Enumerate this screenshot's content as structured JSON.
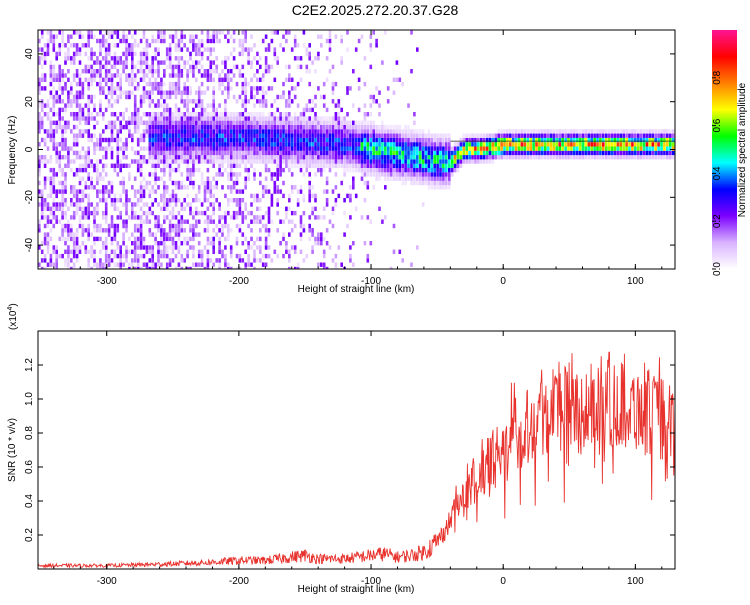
{
  "title": "C2E2.2025.272.20.37.G28",
  "chart_data": [
    {
      "type": "heatmap",
      "name": "spectrogram",
      "xlabel": "Height of straight line (km)",
      "ylabel": "Frequency (Hz)",
      "xlim": [
        -352,
        130
      ],
      "ylim": [
        -50,
        50
      ],
      "xticks": [
        -300,
        -200,
        -100,
        0,
        100
      ],
      "xtick_labels": [
        "-300",
        "-200",
        "-100",
        "0",
        "100"
      ],
      "yticks": [
        -40,
        -20,
        0,
        20,
        40
      ],
      "ytick_labels": [
        "-40",
        "-20",
        "0",
        "20",
        "40"
      ],
      "ridge": {
        "x": [
          -260,
          -230,
          -200,
          -170,
          -140,
          -120,
          -100,
          -80,
          -60,
          -50,
          -40,
          -30,
          -20,
          -10,
          0,
          20,
          60,
          100,
          130
        ],
        "frequency_hz": [
          5,
          5,
          5,
          4,
          3,
          2,
          0,
          -2,
          -4,
          -5,
          -5,
          0,
          0,
          1,
          2,
          2,
          2,
          2,
          2
        ]
      },
      "colorbar": {
        "label": "Normalized spectral amplitude",
        "range": [
          0,
          1
        ],
        "ticks": [
          0.0,
          0.2,
          0.4,
          0.6,
          0.8
        ],
        "tick_labels": [
          "0.0",
          "0.2",
          "0.4",
          "0.6",
          "0.8"
        ],
        "colors": [
          "#ffffff",
          "#d9b3ff",
          "#7b00ff",
          "#0000ff",
          "#00ffff",
          "#00ff00",
          "#ffff00",
          "#ff7f00",
          "#ff0000",
          "#ff1493"
        ]
      }
    },
    {
      "type": "line",
      "name": "snr",
      "xlabel": "Height of straight line (km)",
      "ylabel": "SNR (10 * v/v)",
      "scale_label": "(x10",
      "scale_exponent": "4",
      "scale_suffix": ")",
      "xlim": [
        -352,
        130
      ],
      "ylim": [
        0,
        1.4
      ],
      "xticks": [
        -300,
        -200,
        -100,
        0,
        100
      ],
      "xtick_labels": [
        "-300",
        "-200",
        "-100",
        "0",
        "100"
      ],
      "yticks": [
        0.2,
        0.4,
        0.6,
        0.8,
        1.0,
        1.2
      ],
      "ytick_labels": [
        "0.2",
        "0.4",
        "0.6",
        "0.8",
        "1.0",
        "1.2"
      ],
      "color": "#e8322d",
      "series": [
        {
          "name": "SNR",
          "x": [
            -352,
            -300,
            -250,
            -220,
            -200,
            -180,
            -160,
            -150,
            -140,
            -120,
            -100,
            -90,
            -80,
            -70,
            -60,
            -50,
            -40,
            -30,
            -20,
            -10,
            0,
            10,
            20,
            30,
            40,
            50,
            60,
            70,
            80,
            90,
            100,
            110,
            120,
            130
          ],
          "y": [
            0.02,
            0.02,
            0.03,
            0.04,
            0.05,
            0.05,
            0.07,
            0.08,
            0.06,
            0.06,
            0.08,
            0.09,
            0.07,
            0.08,
            0.1,
            0.16,
            0.28,
            0.42,
            0.52,
            0.62,
            0.72,
            0.8,
            0.86,
            0.92,
            0.96,
            0.95,
            0.93,
            0.96,
            1.0,
            0.96,
            0.95,
            0.92,
            0.88,
            0.85
          ]
        }
      ]
    }
  ]
}
